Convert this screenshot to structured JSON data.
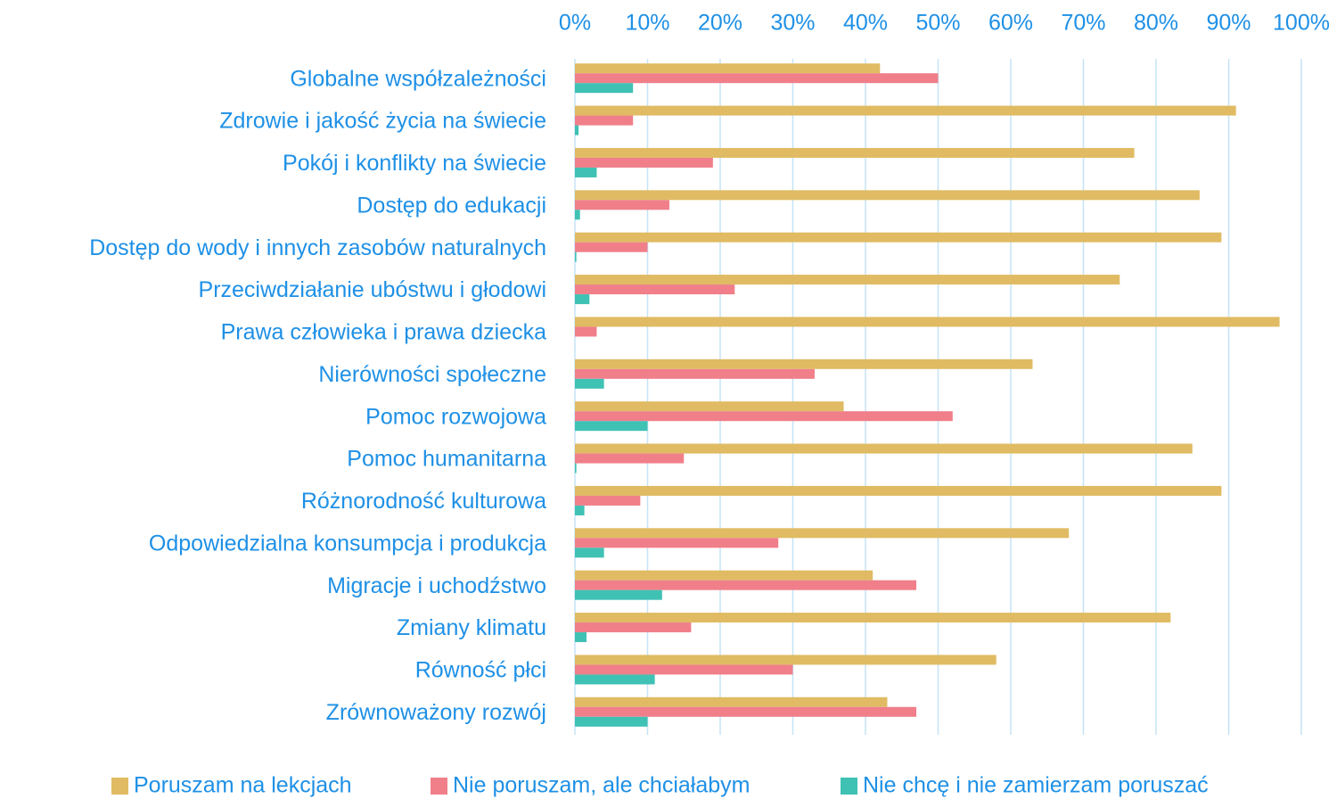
{
  "chart_data": {
    "type": "hbar",
    "categories": [
      "Globalne współzależności",
      "Zdrowie i jakość życia na świecie",
      "Pokój i konflikty na świecie",
      "Dostęp do edukacji",
      "Dostęp do wody i innych zasobów naturalnych",
      "Przeciwdziałanie ubóstwu i głodowi",
      "Prawa człowieka i prawa dziecka",
      "Nierówności społeczne",
      "Pomoc rozwojowa",
      "Pomoc humanitarna",
      "Różnorodność kulturowa",
      "Odpowiedzialna konsumpcja i produkcja",
      "Migracje i uchodźstwo",
      "Zmiany klimatu",
      "Równość płci",
      "Zrównoważony rozwój"
    ],
    "series": [
      {
        "name": "Poruszam na lekcjach",
        "color": "#e0bb63",
        "values": [
          42,
          91,
          77,
          86,
          89,
          75,
          97,
          63,
          37,
          85,
          89,
          68,
          41,
          82,
          58,
          43
        ]
      },
      {
        "name": "Nie poruszam, ale chciałabym",
        "color": "#f07f8a",
        "values": [
          50,
          8,
          19,
          13,
          10,
          22,
          3,
          33,
          52,
          15,
          9,
          28,
          47,
          16,
          30,
          47
        ]
      },
      {
        "name": "Nie chcę i nie zamierzam poruszać",
        "color": "#3fc1b4",
        "values": [
          8,
          0.5,
          3,
          0.7,
          0.2,
          2,
          0,
          4,
          10,
          0.2,
          1.3,
          4,
          12,
          1.6,
          11,
          10
        ]
      }
    ],
    "xlim": [
      0,
      100
    ],
    "xticks": [
      {
        "value": 0,
        "label": "0%"
      },
      {
        "value": 10,
        "label": "10%"
      },
      {
        "value": 20,
        "label": "20%"
      },
      {
        "value": 30,
        "label": "30%"
      },
      {
        "value": 40,
        "label": "40%"
      },
      {
        "value": 50,
        "label": "50%"
      },
      {
        "value": 60,
        "label": "60%"
      },
      {
        "value": 70,
        "label": "70%"
      },
      {
        "value": 80,
        "label": "80%"
      },
      {
        "value": 90,
        "label": "90%"
      },
      {
        "value": 100,
        "label": "100%"
      }
    ],
    "grid": true,
    "legend": "bottom"
  }
}
